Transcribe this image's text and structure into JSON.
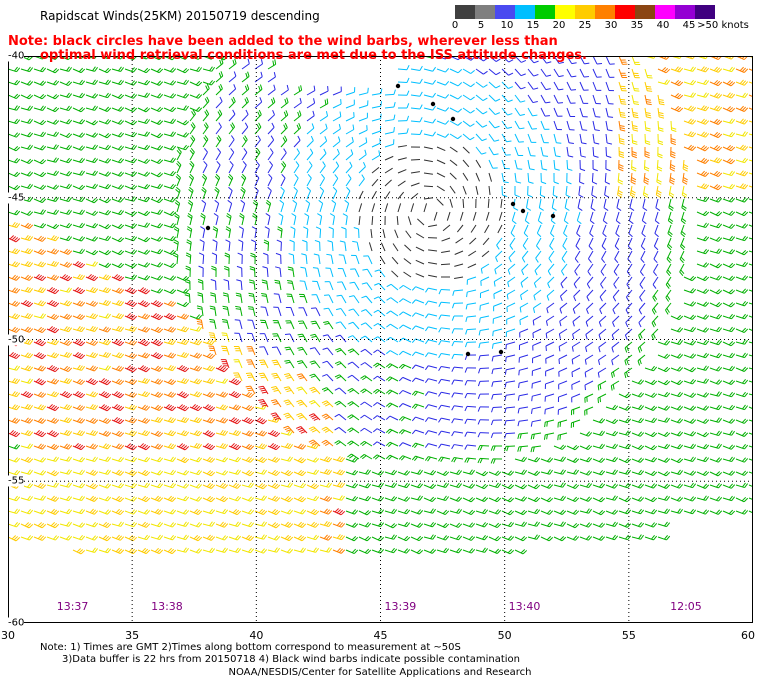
{
  "header": {
    "title": "Rapidscat Winds(25KM) 20150719 descending",
    "note_line1": "Note: black circles have been added to the wind barbs, wherever less than",
    "note_line2": "optimal wind retrieval conditions are met due to the ISS attitude changes."
  },
  "legend": {
    "unit": "knots",
    "colors": [
      "#404040",
      "#7f7f7f",
      "#4a4af0",
      "#00bfff",
      "#00cc00",
      "#ffff00",
      "#ffcc00",
      "#ff8000",
      "#ff0000",
      "#8b4513",
      "#ff00ff",
      "#9400d3",
      "#400080"
    ],
    "labels": [
      {
        "text": "0",
        "pos": 0
      },
      {
        "text": "5",
        "pos": 2
      },
      {
        "text": "10",
        "pos": 4
      },
      {
        "text": "15",
        "pos": 6
      },
      {
        "text": "20",
        "pos": 8
      },
      {
        "text": "25",
        "pos": 10
      },
      {
        "text": "30",
        "pos": 12
      },
      {
        "text": "35",
        "pos": 14
      },
      {
        "text": "40",
        "pos": 16
      },
      {
        "text": "45",
        "pos": 18
      },
      {
        "text": ">50 knots",
        "pos": 20
      }
    ]
  },
  "map": {
    "lon_range": [
      30,
      60
    ],
    "lat_range": [
      -60,
      -40
    ],
    "lon_ticks": [
      "30",
      "35",
      "40",
      "45",
      "50",
      "55",
      "60"
    ],
    "lat_ticks": [
      "-40",
      "-45",
      "-50",
      "-55",
      "-60"
    ],
    "pass_times": [
      {
        "text": "13:37",
        "lon": 32.6
      },
      {
        "text": "13:38",
        "lon": 36.4
      },
      {
        "text": "13:39",
        "lon": 45.8
      },
      {
        "text": "13:40",
        "lon": 50.8
      },
      {
        "text": "12:05",
        "lon": 57.3
      }
    ],
    "cyclone_center": {
      "lon": 47,
      "lat": -45.5
    }
  },
  "footer": {
    "line1": "Note: 1) Times are GMT  2)Times along bottom correspond to measurement at ~50S",
    "line2": "3)Data buffer is 22 hrs from 20150718  4) Black wind barbs indicate possible contamination",
    "line3": "NOAA/NESDIS/Center for Satellite Applications and Research"
  }
}
